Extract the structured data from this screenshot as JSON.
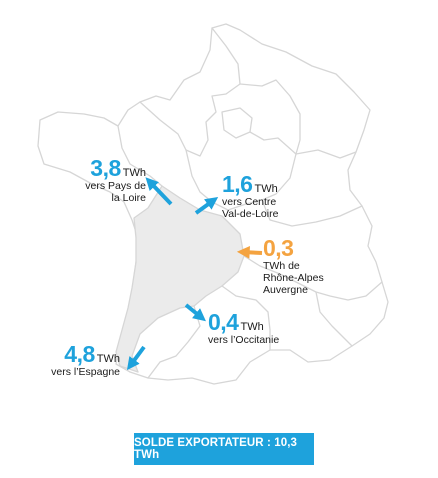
{
  "colors": {
    "export": "#1ea2dc",
    "import": "#f4a340",
    "region_highlight": "#ebebeb",
    "border": "#d6d6d6",
    "badge_bg": "#1ea2dc"
  },
  "flows": [
    {
      "id": "pays-de-la-loire",
      "value": "3,8",
      "unit": "TWh",
      "line1": "vers Pays de",
      "line2": "la Loire",
      "direction": "export"
    },
    {
      "id": "centre-val-de-loire",
      "value": "1,6",
      "unit": "TWh",
      "line1": "vers Centre",
      "line2": "Val-de-Loire",
      "direction": "export"
    },
    {
      "id": "rhone-alpes-auvergne",
      "value": "0,3",
      "unit": "TWh de",
      "line1": "Rhône-Alpes",
      "line2": "Auvergne",
      "direction": "import"
    },
    {
      "id": "occitanie",
      "value": "0,4",
      "unit": "TWh",
      "line1": "vers l’Occitanie",
      "line2": "",
      "direction": "export"
    },
    {
      "id": "espagne",
      "value": "4,8",
      "unit": "TWh",
      "line1": "vers l’Espagne",
      "line2": "",
      "direction": "export"
    }
  ],
  "summary": {
    "label": "SOLDE EXPORTATEUR : 10,3 TWh"
  }
}
